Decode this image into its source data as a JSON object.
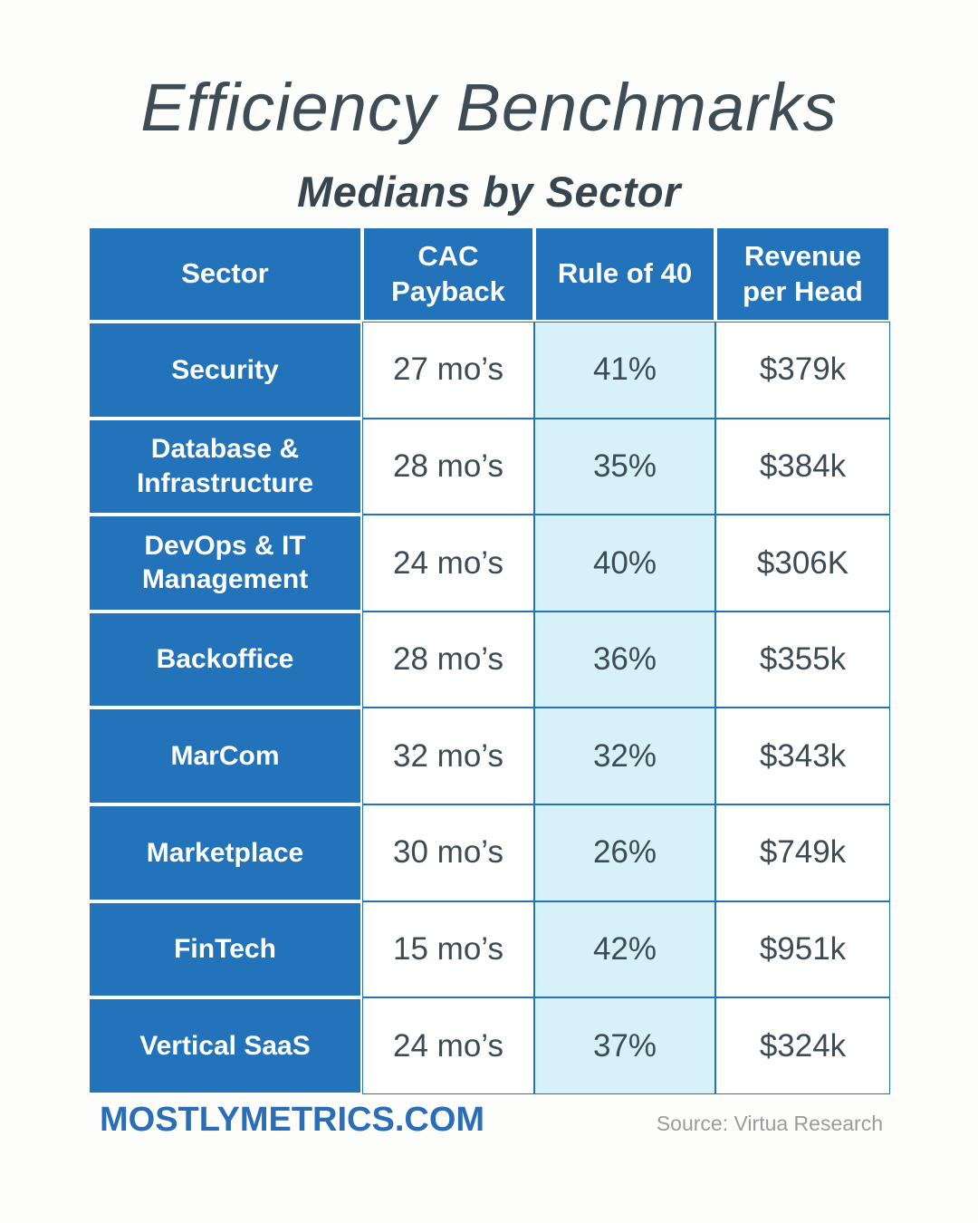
{
  "header": {
    "title": "Efficiency Benchmarks",
    "subtitle": "Medians by Sector"
  },
  "chart_data": {
    "type": "table",
    "title": "Efficiency Benchmarks",
    "subtitle": "Medians by Sector",
    "columns": [
      "Sector",
      "CAC Payback",
      "Rule of 40",
      "Revenue per Head"
    ],
    "rows": [
      [
        "Security",
        "27 mo’s",
        "41%",
        "$379k"
      ],
      [
        "Database & Infrastructure",
        "28 mo’s",
        "35%",
        "$384k"
      ],
      [
        "DevOps & IT Management",
        "24 mo’s",
        "40%",
        "$306K"
      ],
      [
        "Backoffice",
        "28 mo’s",
        "36%",
        "$355k"
      ],
      [
        "MarCom",
        "32 mo’s",
        "32%",
        "$343k"
      ],
      [
        "Marketplace",
        "30 mo’s",
        "26%",
        "$749k"
      ],
      [
        "FinTech",
        "15 mo’s",
        "42%",
        "$951k"
      ],
      [
        "Vertical SaaS",
        "24 mo’s",
        "37%",
        "$324k"
      ]
    ],
    "layout_hints": {
      "highlighted_column": "Rule of 40",
      "header_style": "blue-filled",
      "sector_column_style": "blue-filled"
    }
  },
  "footer": {
    "brand": "MOSTLYMETRICS.COM",
    "source": "Source: Virtua Research"
  },
  "colors": {
    "table_blue": "#2273b9",
    "highlight_cyan": "#d7f1f9",
    "text_dark": "#3d4b54",
    "title_dark": "#3e4c55",
    "brand_blue": "#2b6db6",
    "source_gray": "#9b9b9b",
    "background": "#fdfdfc"
  }
}
